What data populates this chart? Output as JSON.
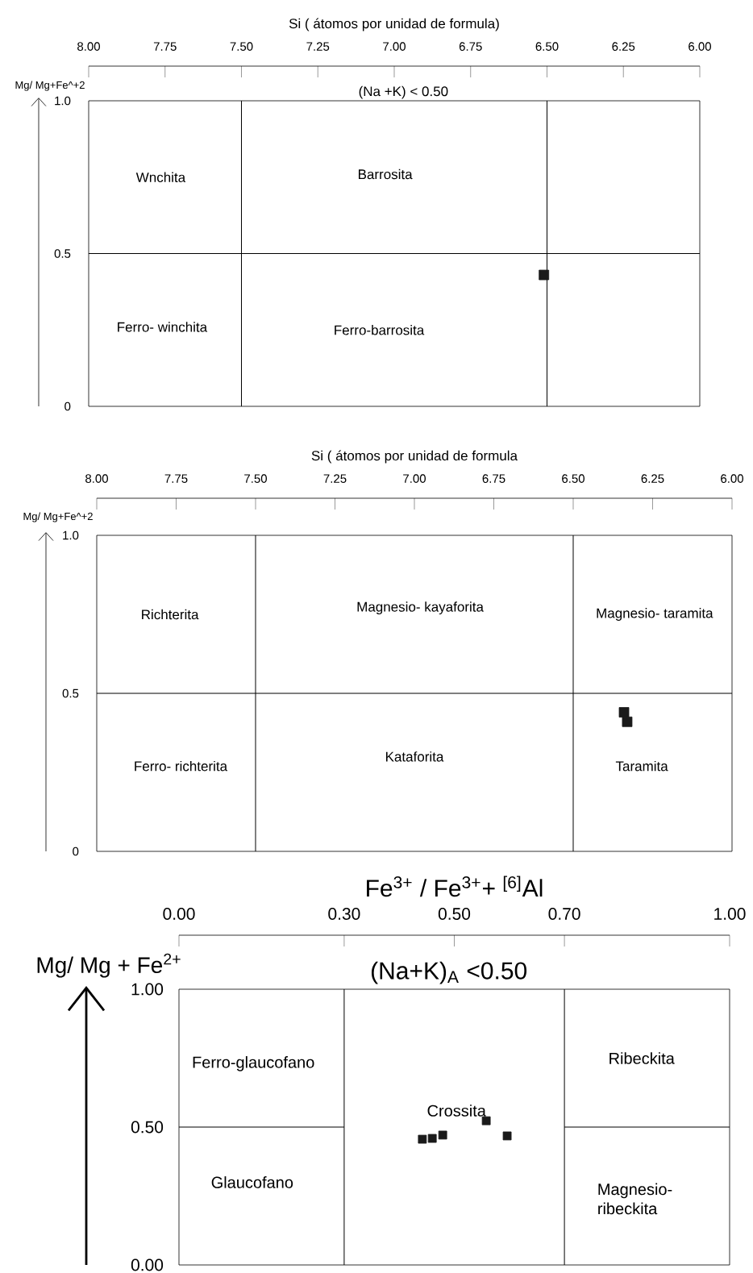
{
  "chart_data": [
    {
      "type": "scatter",
      "xlabel": "Si ( átomos por unidad de formula)",
      "ylabel": "Mg/ Mg+Fe^+2",
      "subtitle": "(Na +K) < 0.50",
      "xlim": [
        8,
        6
      ],
      "xticks": [
        {
          "value": 8,
          "label": "8.00"
        },
        {
          "value": 7.75,
          "label": "7.75"
        },
        {
          "value": 7.5,
          "label": "7.50"
        },
        {
          "value": 7.25,
          "label": "7.25"
        },
        {
          "value": 7,
          "label": "7.00"
        },
        {
          "value": 6.75,
          "label": "6.75"
        },
        {
          "value": 6.5,
          "label": "6.50"
        },
        {
          "value": 6.25,
          "label": "6.25"
        },
        {
          "value": 6,
          "label": "6.00"
        }
      ],
      "ylim": [
        0,
        1
      ],
      "yticks": [
        0,
        0.5,
        {
          "value": 1,
          "label": "1.0"
        }
      ],
      "marker": "square",
      "ref_lines": [
        {
          "axis": "x",
          "value": 7.5
        },
        {
          "axis": "x",
          "value": 6.5
        },
        {
          "axis": "y",
          "value": 0.5
        }
      ],
      "annotations": [
        "Wnchita",
        "Barrosita",
        "Ferro- winchita",
        "Ferro-barrosita"
      ],
      "series": [
        {
          "color": "#1a1a1a",
          "x": [
            6.51
          ],
          "values": [
            0.43
          ]
        }
      ]
    },
    {
      "type": "scatter",
      "xlabel": "Si ( átomos por unidad de formula",
      "ylabel": "Mg/ Mg+Fe^+2",
      "xlim": [
        8,
        6
      ],
      "xticks": [
        {
          "value": 8,
          "label": "8.00"
        },
        {
          "value": 7.75,
          "label": "7.75"
        },
        {
          "value": 7.5,
          "label": "7.50"
        },
        {
          "value": 7.25,
          "label": "7.25"
        },
        {
          "value": 7,
          "label": "7.00"
        },
        {
          "value": 6.75,
          "label": "6.75"
        },
        {
          "value": 6.5,
          "label": "6.50"
        },
        {
          "value": 6.25,
          "label": "6.25"
        },
        {
          "value": 6,
          "label": "6.00"
        }
      ],
      "ylim": [
        0,
        1
      ],
      "yticks": [
        0,
        0.5,
        {
          "value": 1,
          "label": "1.0"
        }
      ],
      "marker": "square",
      "ref_lines": [
        {
          "axis": "x",
          "value": 7.5
        },
        {
          "axis": "x",
          "value": 6.5
        },
        {
          "axis": "y",
          "value": 0.5
        }
      ],
      "annotations": [
        "Richterita",
        "Magnesio- kayaforita",
        "Magnesio- taramita",
        "Ferro- richterita",
        "Kataforita",
        "Taramita"
      ],
      "series": [
        {
          "color": "#1a1a1a",
          "x": [
            6.34,
            6.33
          ],
          "values": [
            0.44,
            0.41
          ]
        }
      ]
    },
    {
      "type": "scatter",
      "xlabel": "Fe$^{3+}$ / Fe$^{3+}$+ $^{[6]}$Al",
      "ylabel": "Mg/ Mg + Fe$^{2+}$",
      "subtitle": "(Na+K)$_{A}$ <0.50",
      "xlim": [
        0,
        1
      ],
      "xticks": [
        {
          "value": 0,
          "label": "0.00"
        },
        {
          "value": 0.3,
          "label": "0.30"
        },
        {
          "value": 0.5,
          "label": "0.50"
        },
        {
          "value": 0.7,
          "label": "0.70"
        },
        {
          "value": 1,
          "label": "1.00"
        }
      ],
      "ylim": [
        0,
        1
      ],
      "yticks": [
        {
          "value": 0,
          "label": "0.00"
        },
        {
          "value": 0.5,
          "label": "0.50"
        },
        {
          "value": 1,
          "label": "1.00"
        }
      ],
      "marker": "square",
      "ref_lines": [
        {
          "axis": "x",
          "value": 0.3
        },
        {
          "axis": "x",
          "value": 0.7
        }
      ],
      "annotations": [
        "Ferro-glaucofano",
        "Crossita",
        "Ribeckita",
        "Glaucofano",
        "Magnesio-ribeckita"
      ],
      "series": [
        {
          "color": "#1a1a1a",
          "x": [
            0.442,
            0.46,
            0.479,
            0.558,
            0.596
          ],
          "values": [
            0.456,
            0.459,
            0.471,
            0.523,
            0.468
          ]
        },
        {
          "type": "line",
          "marker": "none",
          "color": "#000000",
          "x": [
            0,
            0.3
          ],
          "values": [
            0.5,
            0.5
          ]
        },
        {
          "type": "line",
          "marker": "none",
          "color": "#000000",
          "x": [
            0.7,
            1
          ],
          "values": [
            0.5,
            0.5
          ]
        }
      ]
    }
  ]
}
